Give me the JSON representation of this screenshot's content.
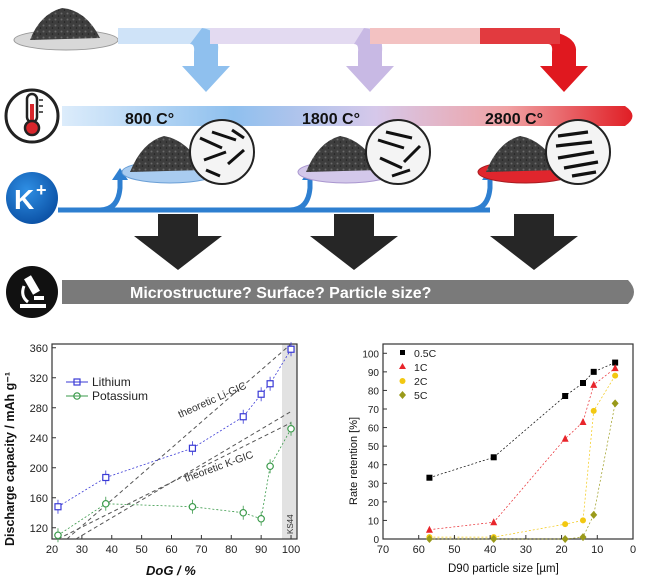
{
  "figure": {
    "temperatures": [
      "800 C°",
      "1800 C°",
      "2800 C°"
    ],
    "potassium_icon_label": "K",
    "potassium_icon_sup": "+",
    "questions_banner": "Microstructure?  Surface?  Particle size?",
    "heat_colors": [
      "#9ec6f0",
      "#cfc4e6",
      "#e8252b"
    ]
  },
  "left_chart": {
    "chart_data": {
      "type": "scatter",
      "xlabel": "DoG / %",
      "ylabel": "Discharge capacity / mAh g⁻¹",
      "xlim": [
        20,
        102
      ],
      "ylim": [
        105,
        365
      ],
      "xticks": [
        "20",
        "30",
        "40",
        "50",
        "60",
        "70",
        "80",
        "90",
        "100"
      ],
      "yticks": [
        "120",
        "160",
        "200",
        "240",
        "280",
        "320",
        "360"
      ],
      "series": [
        {
          "name": "Lithium",
          "color": "#3a3ad6",
          "marker": "square",
          "x": [
            22,
            38,
            67,
            84,
            90,
            93,
            100
          ],
          "y": [
            148,
            187,
            226,
            268,
            298,
            312,
            358
          ]
        },
        {
          "name": "Potassium",
          "color": "#3a9a4a",
          "marker": "circle",
          "x": [
            22,
            38,
            67,
            84,
            90,
            93,
            100
          ],
          "y": [
            110,
            152,
            148,
            140,
            132,
            202,
            252
          ]
        }
      ],
      "annotations": [
        "theoretic Li-GIC",
        "theoretic K-GIC",
        "KS44"
      ],
      "grid": false,
      "legend": "top-left"
    }
  },
  "right_chart": {
    "chart_data": {
      "type": "scatter",
      "xlabel": "D90 particle size [µm]",
      "ylabel": "Rate retention [%]",
      "xlim": [
        70,
        0
      ],
      "ylim": [
        0,
        105
      ],
      "xticks": [
        "70",
        "60",
        "50",
        "40",
        "30",
        "20",
        "10",
        "0"
      ],
      "yticks": [
        "0",
        "10",
        "20",
        "30",
        "40",
        "50",
        "60",
        "70",
        "80",
        "90",
        "100"
      ],
      "series": [
        {
          "name": "0.5C",
          "color": "#000000",
          "marker": "square",
          "x": [
            57,
            39,
            19,
            14,
            11,
            5
          ],
          "y": [
            33,
            44,
            77,
            84,
            90,
            95
          ]
        },
        {
          "name": "1C",
          "color": "#e8252b",
          "marker": "triangle",
          "x": [
            57,
            39,
            19,
            14,
            11,
            5
          ],
          "y": [
            5,
            9,
            54,
            63,
            83,
            92
          ]
        },
        {
          "name": "2C",
          "color": "#f2c811",
          "marker": "circle",
          "x": [
            57,
            39,
            19,
            14,
            11,
            5
          ],
          "y": [
            1,
            1,
            8,
            10,
            69,
            88
          ]
        },
        {
          "name": "5C",
          "color": "#9a9a1a",
          "marker": "diamond",
          "x": [
            57,
            39,
            19,
            14,
            11,
            5
          ],
          "y": [
            0,
            0,
            0,
            1,
            13,
            73
          ]
        }
      ],
      "grid": false,
      "legend": "top-left"
    }
  }
}
